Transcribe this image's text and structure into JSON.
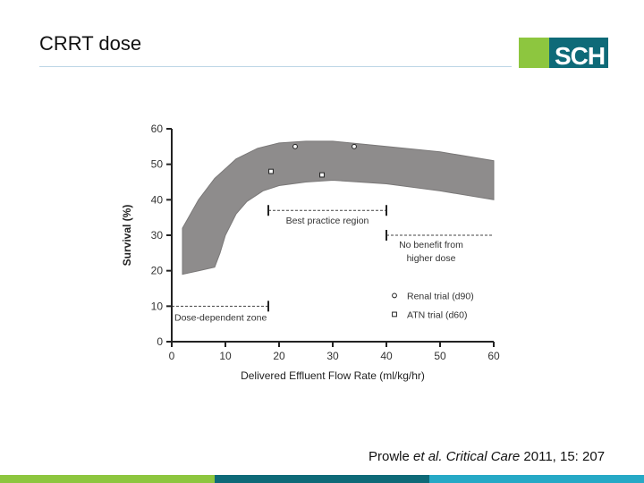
{
  "slide": {
    "title": "CRRT dose",
    "logo_text": "SCH",
    "citation_prefix": "Prowle ",
    "citation_italic": "et al. Critical Care",
    "citation_suffix": " 2011, 15: 207"
  },
  "colors": {
    "band": "#8e8c8c",
    "logo_green": "#8dc63f",
    "logo_teal": "#0e6a78",
    "footer": [
      "#8dc63f",
      "#0e6a78",
      "#26a9c6"
    ]
  },
  "chart_data": {
    "type": "area",
    "xlabel": "Delivered Effluent Flow Rate (ml/kg/hr)",
    "ylabel": "Survival (%)",
    "xlim": [
      0,
      60
    ],
    "ylim": [
      0,
      60
    ],
    "x_ticks": [
      "0",
      "10",
      "20",
      "30",
      "40",
      "50",
      "60"
    ],
    "y_ticks": [
      "0",
      "10",
      "20",
      "30",
      "40",
      "50",
      "60"
    ],
    "band": {
      "upper": [
        [
          2,
          32
        ],
        [
          5,
          40
        ],
        [
          8,
          46
        ],
        [
          12,
          51.5
        ],
        [
          16,
          54.5
        ],
        [
          20,
          56
        ],
        [
          25,
          56.5
        ],
        [
          30,
          56.5
        ],
        [
          40,
          55
        ],
        [
          50,
          53.5
        ],
        [
          60,
          51
        ]
      ],
      "lower": [
        [
          2,
          19
        ],
        [
          5,
          20
        ],
        [
          8,
          21
        ],
        [
          9,
          25
        ],
        [
          10,
          30
        ],
        [
          12,
          36
        ],
        [
          14,
          39.5
        ],
        [
          17,
          42.5
        ],
        [
          20,
          44
        ],
        [
          25,
          45
        ],
        [
          30,
          45.5
        ],
        [
          40,
          44.5
        ],
        [
          50,
          42.5
        ],
        [
          60,
          40
        ]
      ]
    },
    "points": [
      {
        "series": "Renal trial (d90)",
        "x": 23,
        "y": 55
      },
      {
        "series": "Renal trial (d90)",
        "x": 34,
        "y": 55
      },
      {
        "series": "ATN trial (d60)",
        "x": 18.5,
        "y": 48
      },
      {
        "series": "ATN trial (d60)",
        "x": 28,
        "y": 47
      }
    ],
    "legend": {
      "position": "bottom-right",
      "entries": [
        {
          "label": "Renal trial (d90)",
          "marker": "circle"
        },
        {
          "label": "ATN trial (d60)",
          "marker": "square"
        }
      ]
    },
    "annotations": [
      {
        "text": "Best practice region",
        "x_range": [
          18,
          40
        ],
        "y": 37,
        "style": "bracket-dashed"
      },
      {
        "text": "No benefit from higher dose",
        "x_range": [
          40,
          60
        ],
        "y": 30,
        "style": "dashed"
      },
      {
        "text": "Dose-dependent zone",
        "x_range": [
          0,
          18
        ],
        "y": 10,
        "style": "bracket-dashed"
      }
    ]
  }
}
